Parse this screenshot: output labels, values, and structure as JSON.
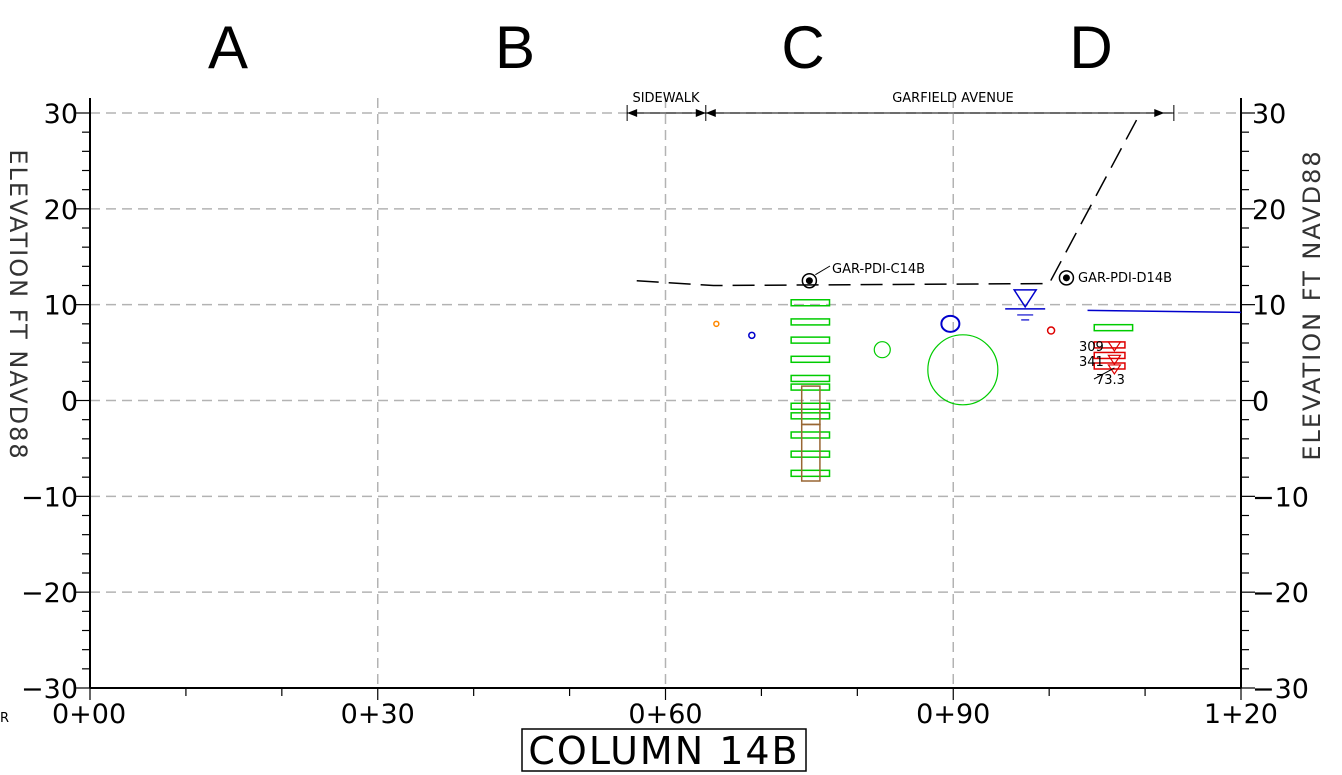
{
  "columns": [
    "A",
    "B",
    "C",
    "D"
  ],
  "section_title": "COLUMN 14B",
  "axis_title_left": "ELEVATION FT NAVD88",
  "axis_title_right": "ELEVATION FT NAVD88",
  "corner_label": "R",
  "chart_data": {
    "type": "diagram",
    "x_ticks": [
      "0+00",
      "0+30",
      "0+60",
      "0+90",
      "1+20"
    ],
    "y_ticks": [
      30,
      20,
      10,
      0,
      -10,
      -20,
      -30
    ],
    "y_tick_labels": [
      "30",
      "20",
      "10",
      "0",
      "−10",
      "−20",
      "−30"
    ],
    "xlim": [
      0,
      120
    ],
    "ylim": [
      -30,
      30
    ],
    "grid": true,
    "dimension_labels": {
      "sidewalk": "SIDEWALK",
      "street": "GARFIELD AVENUE"
    },
    "borings": [
      {
        "id": "GAR-PDI-C14B",
        "station": 75,
        "elevation": 12.5
      },
      {
        "id": "GAR-PDI-D14B",
        "station": 101.8,
        "elevation": 12.8
      }
    ],
    "callouts": [
      "309",
      "341",
      "73.3"
    ],
    "colors": {
      "grid": "#b3b3b3",
      "utility_green": "#00cc00",
      "utility_blue": "#0000cc",
      "utility_red": "#dd0000",
      "utility_orange": "#ff8800",
      "utility_brown": "#996633"
    }
  }
}
